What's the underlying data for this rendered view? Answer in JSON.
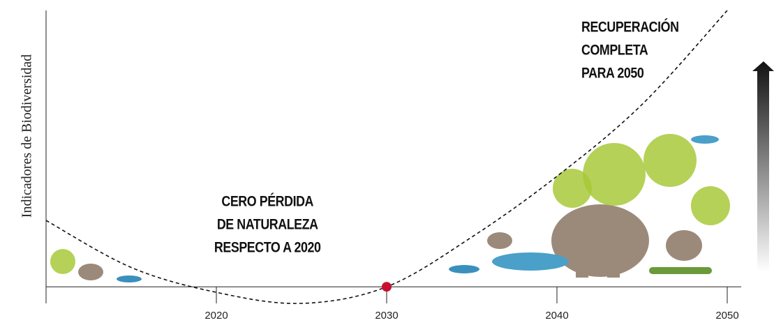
{
  "chart_data": {
    "type": "line",
    "y_label": "Indicadores de Biodiversidad",
    "x": [
      2010,
      2015,
      2020,
      2025,
      2030,
      2035,
      2040,
      2045,
      2050
    ],
    "values": [
      24,
      7,
      -2,
      -6,
      0,
      18,
      40,
      66,
      100
    ],
    "color": "#111111",
    "dashed": true,
    "xlim": [
      2010,
      2050
    ],
    "xticks": [
      2020,
      2030,
      2040,
      2050
    ],
    "ylim": [
      -6,
      100
    ],
    "highlight": {
      "x": 2030,
      "value": 0,
      "color": "#c8102e"
    },
    "annotations": [
      {
        "x": 2023,
        "lines": [
          "CERO PÉRDIDA",
          "DE NATURALEZA",
          "RESPECTO A 2020"
        ]
      },
      {
        "x": 2043,
        "lines": [
          "RECUPERACIÓN",
          "COMPLETA",
          "PARA 2050"
        ]
      }
    ]
  }
}
